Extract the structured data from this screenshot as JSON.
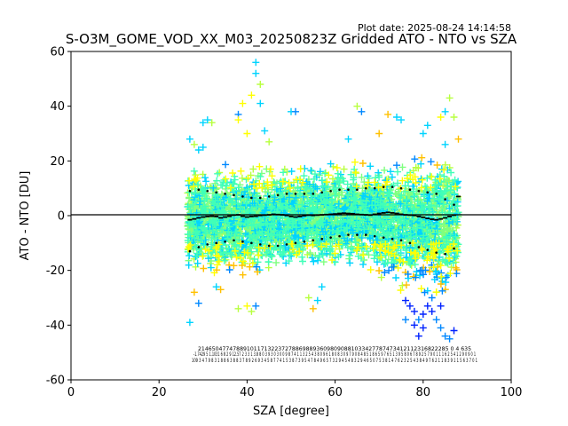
{
  "chart_data": {
    "type": "scatter",
    "title": "S-O3M_GOME_VOD_XX_M03_20250823Z Gridded ATO - NTO vs SZA",
    "plot_date": "Plot date: 2025-08-24 14:14:58",
    "xlabel": "SZA [degree]",
    "ylabel": "ATO - NTO [DU]",
    "xlim": [
      0,
      100
    ],
    "ylim": [
      -60,
      60
    ],
    "xticks": [
      0,
      20,
      40,
      60,
      80,
      100
    ],
    "yticks": [
      -60,
      -40,
      -20,
      0,
      20,
      40,
      60
    ],
    "grid": false,
    "zero_line": 0,
    "marker": "+",
    "colormap": [
      "#0022ff",
      "#0088ff",
      "#00d4ff",
      "#40ffb8",
      "#7fff7f",
      "#b8ff40",
      "#ffff00",
      "#ffc000"
    ],
    "scatter_envelope": {
      "sza_min": 26.5,
      "sza_max": 88,
      "core_upper": [
        [
          27,
          18
        ],
        [
          35,
          19
        ],
        [
          45,
          19
        ],
        [
          55,
          20
        ],
        [
          65,
          21
        ],
        [
          75,
          22
        ],
        [
          85,
          24
        ],
        [
          88,
          20
        ]
      ],
      "core_lower": [
        [
          27,
          -20
        ],
        [
          35,
          -24
        ],
        [
          45,
          -22
        ],
        [
          55,
          -20
        ],
        [
          65,
          -20
        ],
        [
          75,
          -28
        ],
        [
          85,
          -32
        ],
        [
          88,
          -25
        ]
      ]
    },
    "series": [
      {
        "name": "",
        "style": "mean",
        "x": [
          27,
          28,
          29,
          30,
          31,
          32,
          33,
          34,
          35,
          36,
          37,
          38,
          39,
          40,
          41,
          42,
          43,
          44,
          45,
          46,
          47,
          48,
          49,
          50,
          51,
          52,
          53,
          54,
          55,
          56,
          57,
          58,
          59,
          60,
          61,
          62,
          63,
          64,
          65,
          66,
          67,
          68,
          69,
          70,
          71,
          72,
          73,
          74,
          75,
          76,
          77,
          78,
          79,
          80,
          81,
          82,
          83,
          84,
          85,
          86,
          87,
          88
        ],
        "y": [
          -1.5,
          -1.2,
          -0.8,
          -0.5,
          -0.3,
          -0.2,
          -0.3,
          -0.8,
          -0.5,
          -0.2,
          0.2,
          0.3,
          -0.2,
          -0.5,
          -0.3,
          -0.2,
          0.1,
          0.2,
          0.3,
          0.5,
          0.4,
          0.3,
          0.1,
          -0.3,
          -0.5,
          -0.3,
          0,
          0.2,
          0.1,
          0.2,
          0.3,
          0.4,
          0.5,
          0.6,
          0.8,
          0.9,
          0.8,
          0.7,
          0.5,
          0.4,
          0.3,
          0.2,
          0.5,
          0.8,
          1.0,
          1.2,
          1.0,
          0.8,
          0.5,
          0.3,
          0.2,
          0.1,
          -0.3,
          -0.6,
          -1.0,
          -1.3,
          -1.5,
          -1.2,
          -0.8,
          -0.3,
          0.2,
          7
        ]
      },
      {
        "name": "",
        "style": "upper",
        "x": [
          27,
          29,
          31,
          33,
          35,
          37,
          39,
          41,
          43,
          45,
          47,
          49,
          51,
          53,
          55,
          57,
          59,
          61,
          63,
          65,
          67,
          69,
          71,
          73,
          75,
          77,
          79,
          81,
          83,
          85,
          87
        ],
        "y": [
          9,
          9.5,
          9,
          8.5,
          8,
          7.5,
          7,
          6.5,
          6.5,
          7,
          7.5,
          8,
          8,
          8,
          8,
          8.5,
          9,
          9.5,
          9.5,
          9.5,
          10,
          10,
          10.5,
          10.5,
          10,
          9.5,
          9,
          8.5,
          8,
          6,
          4
        ]
      },
      {
        "name": "",
        "style": "lower",
        "x": [
          27,
          29,
          31,
          33,
          35,
          37,
          39,
          41,
          43,
          45,
          47,
          49,
          51,
          53,
          55,
          57,
          59,
          61,
          63,
          65,
          67,
          69,
          71,
          73,
          75,
          77,
          79,
          81,
          83,
          85,
          87
        ],
        "y": [
          -13,
          -11.5,
          -10.5,
          -10,
          -9.5,
          -9,
          -9.5,
          -10,
          -10.5,
          -11,
          -11,
          -10.5,
          -10,
          -9.5,
          -9,
          -8.5,
          -8,
          -7.5,
          -7,
          -7,
          -7,
          -7.5,
          -8,
          -8.5,
          -9,
          -10,
          -11.5,
          -12.5,
          -13.5,
          -14,
          -12
        ]
      }
    ],
    "outlier_points": [
      [
        27,
        -39
      ],
      [
        28,
        -28
      ],
      [
        29,
        -32
      ],
      [
        30,
        34
      ],
      [
        31,
        35
      ],
      [
        32,
        34
      ],
      [
        33,
        -26
      ],
      [
        34,
        -27
      ],
      [
        38,
        35
      ],
      [
        38,
        37
      ],
      [
        39,
        41
      ],
      [
        40,
        30
      ],
      [
        41,
        44
      ],
      [
        42,
        52
      ],
      [
        42,
        56
      ],
      [
        43,
        48
      ],
      [
        43,
        41
      ],
      [
        44,
        31
      ],
      [
        45,
        27
      ],
      [
        41,
        -35
      ],
      [
        42,
        -33
      ],
      [
        40,
        -33
      ],
      [
        38,
        -34
      ],
      [
        50,
        38
      ],
      [
        51,
        38
      ],
      [
        54,
        -30
      ],
      [
        55,
        -34
      ],
      [
        56,
        -31
      ],
      [
        57,
        -26
      ],
      [
        58,
        -12
      ],
      [
        59,
        -13
      ],
      [
        60,
        -17
      ],
      [
        63,
        28
      ],
      [
        65,
        40
      ],
      [
        66,
        38
      ],
      [
        70,
        30
      ],
      [
        72,
        37
      ],
      [
        74,
        36
      ],
      [
        75,
        35
      ],
      [
        76,
        -31
      ],
      [
        76,
        -38
      ],
      [
        77,
        -33
      ],
      [
        78,
        -35
      ],
      [
        78,
        -40
      ],
      [
        79,
        -38
      ],
      [
        79,
        -44
      ],
      [
        80,
        -36
      ],
      [
        80,
        -41
      ],
      [
        81,
        -33
      ],
      [
        81,
        33
      ],
      [
        82,
        -30
      ],
      [
        82,
        -35
      ],
      [
        83,
        -28
      ],
      [
        83,
        -38
      ],
      [
        84,
        -33
      ],
      [
        84,
        -41
      ],
      [
        85,
        38
      ],
      [
        85,
        -44
      ],
      [
        86,
        43
      ],
      [
        86,
        -45
      ],
      [
        87,
        -42
      ],
      [
        87,
        36
      ],
      [
        84,
        36
      ],
      [
        85,
        26
      ],
      [
        80,
        30
      ],
      [
        88,
        28
      ],
      [
        27,
        28
      ],
      [
        28,
        26
      ],
      [
        29,
        24
      ],
      [
        30,
        25
      ]
    ],
    "count_row_1": "214650477478891011713223727886988936098090881033427787473412112316822285 0 4 635",
    "count_row_2": "-1.7429 5 1.1031 6 8 2 9 12.57 2 3 3 1 3.8 8 0 3 9 3 0 3 0 0 9 8 7 4 1 1 3 2 5 4 3 8 0 9 6 1 8 0 8 3 0 9 7 9 0 8 4 8 5 1 8 6 5 9 7 6 5 1 3 9 5 8 0 6 7 8 9 2 5 7 9 0 1 1 1 6 2 5 4 1 2 9 0 9 0 1",
    "count_row_3": "109 3 4 7 9 8 3 1 8 8 6 3 8 8 3 7 8 9 2 6 9 3 4 5 8 7 7 4 1 5 3 8 7 3 9 5 4 7 8 4 9 6 5 7 3 2 9 4 5 4 8 3 2 9 4 6 5 0 7 5 3 8 1 4 7 6 2 3 2 5 4 3 8 4 9 7 6 2 1 1 8 3 9 1 1 5 6 3 7 0 1"
  }
}
